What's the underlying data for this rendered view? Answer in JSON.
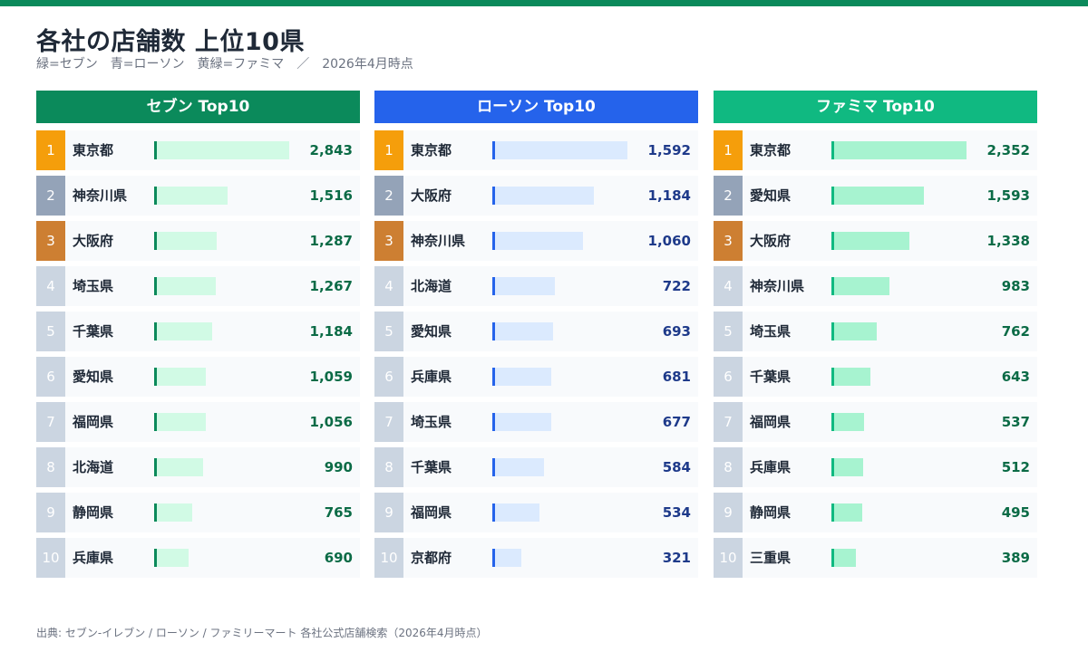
{
  "header": {
    "title": "各社の店舗数 上位10県",
    "subtitle": "緑=セブン　青=ローソン　黄緑=ファミマ　／　2026年4月時点"
  },
  "footer": {
    "source": "出典: セブン-イレブン / ローソン / ファミリーマート 各社公式店舗検索（2026年4月時点）"
  },
  "colors": {
    "rank1": "#f59e0b",
    "rank2": "#94a3b8",
    "rank3": "#cd7f32",
    "rank_other": "#cbd5e1",
    "seven_header": "#0b8a5b",
    "seven_marker": "#0b8a5b",
    "seven_fill": "#d1fae5",
    "seven_value": "#0b6b46",
    "lawson_header": "#2563eb",
    "lawson_marker": "#2563eb",
    "lawson_fill": "#dbeafe",
    "lawson_value": "#1e3a8a",
    "fami_header": "#10b981",
    "fami_marker": "#10b981",
    "fami_fill": "#a7f3d0",
    "fami_value": "#0b6b46"
  },
  "chart_data": [
    {
      "type": "bar",
      "title": "セブン Top10",
      "categories": [
        "東京都",
        "神奈川県",
        "大阪府",
        "埼玉県",
        "千葉県",
        "愛知県",
        "福岡県",
        "北海道",
        "静岡県",
        "兵庫県"
      ],
      "ranks": [
        "1",
        "2",
        "3",
        "4",
        "5",
        "6",
        "7",
        "8",
        "9",
        "10"
      ],
      "values": [
        2843,
        1516,
        1287,
        1267,
        1184,
        1059,
        1056,
        990,
        765,
        690
      ],
      "value_labels": [
        "2,843",
        "1,516",
        "1,287",
        "1,267",
        "1,184",
        "1,059",
        "1,056",
        "990",
        "765",
        "690"
      ],
      "xlim": [
        0,
        2843
      ]
    },
    {
      "type": "bar",
      "title": "ローソン Top10",
      "categories": [
        "東京都",
        "大阪府",
        "神奈川県",
        "北海道",
        "愛知県",
        "兵庫県",
        "埼玉県",
        "千葉県",
        "福岡県",
        "京都府"
      ],
      "ranks": [
        "1",
        "2",
        "3",
        "4",
        "5",
        "6",
        "7",
        "8",
        "9",
        "10"
      ],
      "values": [
        1592,
        1184,
        1060,
        722,
        693,
        681,
        677,
        584,
        534,
        321
      ],
      "value_labels": [
        "1,592",
        "1,184",
        "1,060",
        "722",
        "693",
        "681",
        "677",
        "584",
        "534",
        "321"
      ],
      "xlim": [
        0,
        1592
      ]
    },
    {
      "type": "bar",
      "title": "ファミマ Top10",
      "categories": [
        "東京都",
        "愛知県",
        "大阪府",
        "神奈川県",
        "埼玉県",
        "千葉県",
        "福岡県",
        "兵庫県",
        "静岡県",
        "三重県"
      ],
      "ranks": [
        "1",
        "2",
        "3",
        "4",
        "5",
        "6",
        "7",
        "8",
        "9",
        "10"
      ],
      "values": [
        2352,
        1593,
        1338,
        983,
        762,
        643,
        537,
        512,
        495,
        389
      ],
      "value_labels": [
        "2,352",
        "1,593",
        "1,338",
        "983",
        "762",
        "643",
        "537",
        "512",
        "495",
        "389"
      ],
      "xlim": [
        0,
        2352
      ]
    }
  ]
}
